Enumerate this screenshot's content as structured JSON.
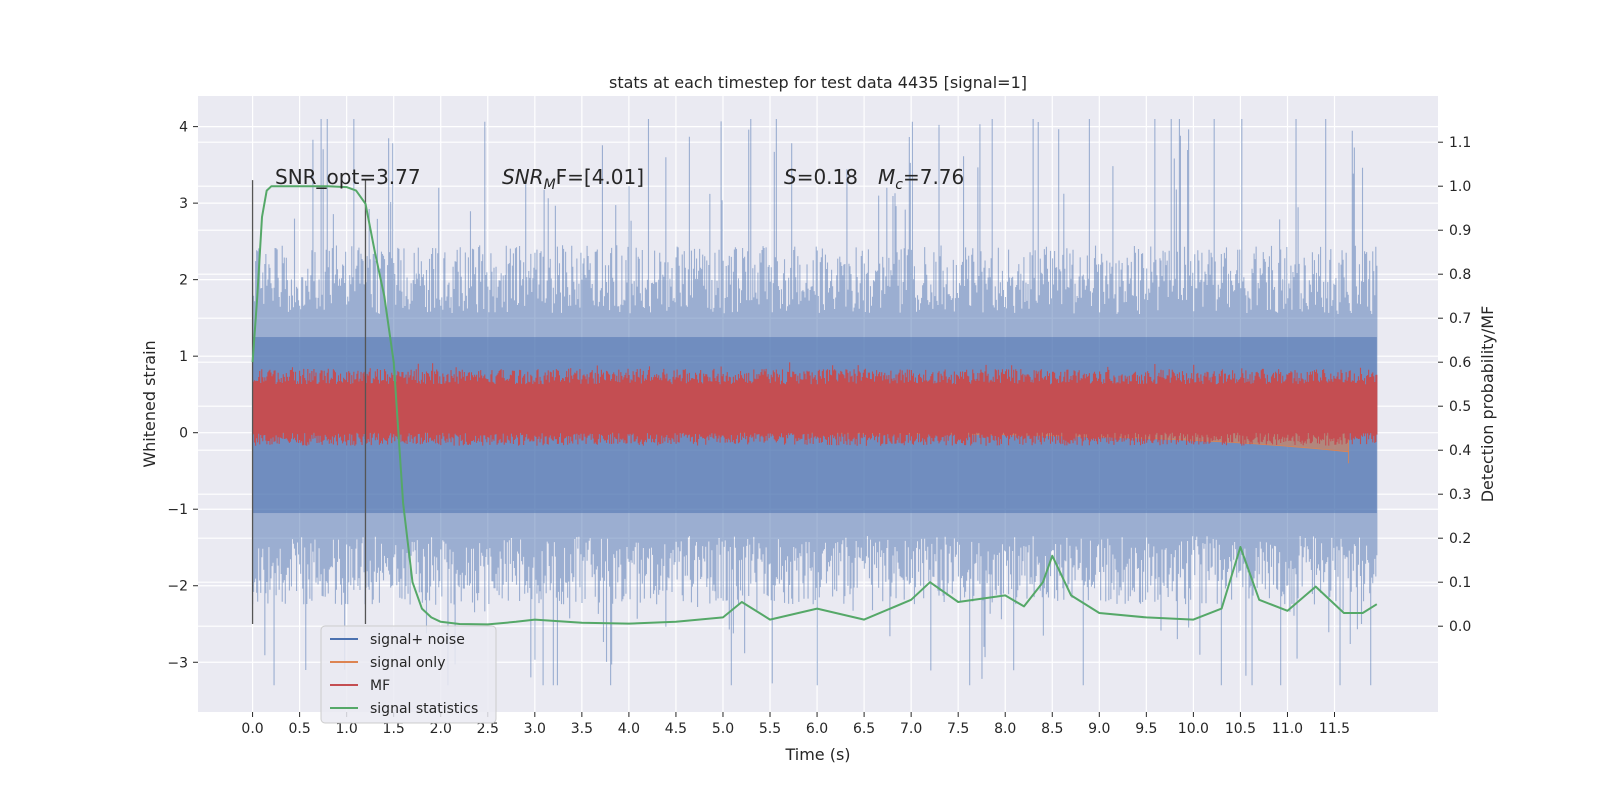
{
  "chart_data": {
    "type": "line",
    "title": "stats at each timestep for test data 4435 [signal=1]",
    "xlabel": "Time (s)",
    "ylabel_left": "Whitened strain",
    "ylabel_right": "Detection probability/MF",
    "xlim": [
      -0.58,
      12.6
    ],
    "ylim_left": [
      -3.65,
      4.4
    ],
    "ylim_right": [
      -0.195,
      1.205
    ],
    "x_ticks": [
      "0.0",
      "0.5",
      "1.0",
      "1.5",
      "2.0",
      "2.5",
      "3.0",
      "3.5",
      "4.0",
      "4.5",
      "5.0",
      "5.5",
      "6.0",
      "6.5",
      "7.0",
      "7.5",
      "8.0",
      "8.5",
      "9.0",
      "9.5",
      "10.0",
      "10.5",
      "11.0",
      "11.5"
    ],
    "y_ticks_left": [
      "−3",
      "−2",
      "−1",
      "0",
      "1",
      "2",
      "3",
      "4"
    ],
    "y_ticks_right": [
      "0.0",
      "0.1",
      "0.2",
      "0.3",
      "0.4",
      "0.5",
      "0.6",
      "0.7",
      "0.8",
      "0.9",
      "1.0",
      "1.1"
    ],
    "grid": true,
    "legend_position": "lower-left",
    "annotations": {
      "snr_opt": "SNR_opt=3.77",
      "snr_mf_main": "SNR",
      "snr_mf_sub": "M",
      "snr_mf_tail": "F=[4.01]",
      "s_label": "S",
      "s_value": "=0.18",
      "mc_main": "M",
      "mc_sub": "c",
      "mc_value": "=7.76"
    },
    "vertical_markers": [
      0.0,
      1.2
    ],
    "series": [
      {
        "name": "signal+ noise",
        "color": "#4c72b0",
        "axis": "left",
        "envelope": [
          -1.35,
          1.55
        ],
        "peaks": [
          -3.3,
          4.1
        ]
      },
      {
        "name": "signal only",
        "color": "#dd8452",
        "axis": "left",
        "envelope": [
          0.0,
          0.05
        ],
        "chirp_end": [
          11.65,
          -0.4
        ]
      },
      {
        "name": "MF",
        "color": "#c44e52",
        "axis": "right",
        "envelope": [
          0.44,
          0.55
        ],
        "peaks": [
          0.5,
          0.6
        ]
      },
      {
        "name": "signal statistics",
        "color": "#55a868",
        "axis": "right",
        "x": [
          0.0,
          0.05,
          0.1,
          0.15,
          0.2,
          0.3,
          0.5,
          0.8,
          1.0,
          1.1,
          1.2,
          1.3,
          1.4,
          1.5,
          1.6,
          1.7,
          1.8,
          1.9,
          2.0,
          2.2,
          2.5,
          2.8,
          3.0,
          3.5,
          4.0,
          4.5,
          5.0,
          5.2,
          5.5,
          6.0,
          6.5,
          7.0,
          7.2,
          7.5,
          8.0,
          8.2,
          8.4,
          8.5,
          8.7,
          9.0,
          9.5,
          10.0,
          10.3,
          10.5,
          10.7,
          11.0,
          11.3,
          11.6,
          11.8,
          11.95
        ],
        "y": [
          0.6,
          0.75,
          0.93,
          0.99,
          1.0,
          1.0,
          1.0,
          1.0,
          0.998,
          0.99,
          0.96,
          0.85,
          0.75,
          0.6,
          0.28,
          0.1,
          0.04,
          0.02,
          0.01,
          0.005,
          0.004,
          0.01,
          0.015,
          0.008,
          0.006,
          0.01,
          0.02,
          0.055,
          0.015,
          0.04,
          0.015,
          0.06,
          0.1,
          0.055,
          0.07,
          0.045,
          0.1,
          0.16,
          0.07,
          0.03,
          0.02,
          0.015,
          0.04,
          0.18,
          0.06,
          0.035,
          0.09,
          0.03,
          0.03,
          0.05
        ]
      }
    ]
  }
}
